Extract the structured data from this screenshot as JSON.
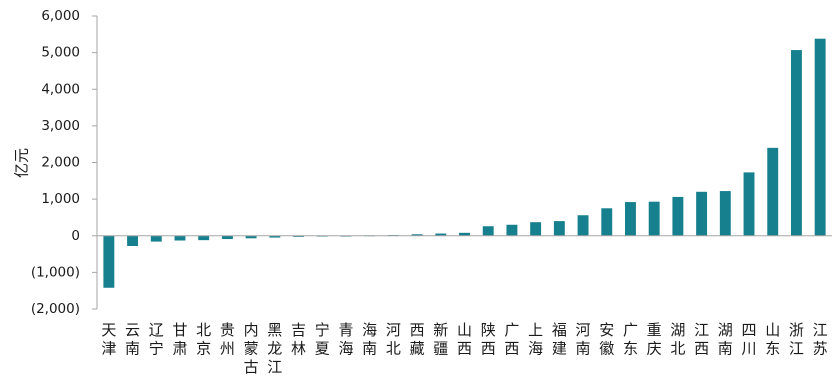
{
  "chart_data": {
    "type": "bar",
    "ylabel": "亿元",
    "ylim": [
      -2000,
      6000
    ],
    "yticks": [
      6000,
      5000,
      4000,
      3000,
      2000,
      1000,
      0,
      -1000,
      -2000
    ],
    "ytick_labels": [
      "6,000",
      "5,000",
      "4,000",
      "3,000",
      "2,000",
      "1,000",
      "0",
      "(1,000)",
      "(2,000)"
    ],
    "categories": [
      "天津",
      "云南",
      "辽宁",
      "甘肃",
      "北京",
      "贵州",
      "内蒙古",
      "黑龙江",
      "吉林",
      "宁夏",
      "青海",
      "海南",
      "河北",
      "西藏",
      "新疆",
      "山西",
      "陕西",
      "广西",
      "上海",
      "福建",
      "河南",
      "安徽",
      "广东",
      "重庆",
      "湖北",
      "江西",
      "湖南",
      "四川",
      "山东",
      "浙江",
      "江苏"
    ],
    "values": [
      -1420,
      -280,
      -160,
      -130,
      -120,
      -90,
      -70,
      -50,
      -30,
      -20,
      -10,
      10,
      20,
      40,
      60,
      80,
      260,
      300,
      370,
      400,
      560,
      750,
      920,
      930,
      1060,
      1200,
      1220,
      1730,
      2400,
      5070,
      5380
    ],
    "bar_color": "#17808E",
    "grid": false,
    "legend": "none"
  }
}
